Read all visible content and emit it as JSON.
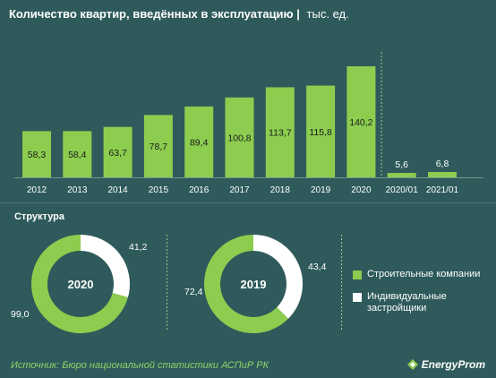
{
  "header": {
    "title": "Количество квартир, введённых в эксплуатацию",
    "separator": "|",
    "unit": "тыс. ед."
  },
  "chart_data": [
    {
      "type": "bar",
      "title": "Количество квартир, введённых в эксплуатацию",
      "unit": "тыс. ед.",
      "categories": [
        "2012",
        "2013",
        "2014",
        "2015",
        "2016",
        "2017",
        "2018",
        "2019",
        "2020",
        "2020/01",
        "2021/01"
      ],
      "values": [
        58.3,
        58.4,
        63.7,
        78.7,
        89.4,
        100.8,
        113.7,
        115.8,
        140.2,
        5.6,
        6.8
      ],
      "value_labels": [
        "58,3",
        "58,4",
        "63,7",
        "78,7",
        "89,4",
        "100,8",
        "113,7",
        "115,8",
        "140,2",
        "5,6",
        "6,8"
      ],
      "ylim": [
        0,
        140.2
      ],
      "grid": false,
      "color": "#8ccd4f"
    },
    {
      "type": "pie",
      "center_label": "2020",
      "series": [
        {
          "name": "Строительные компании",
          "value": 99.0,
          "label": "99,0"
        },
        {
          "name": "Индивидуальные застройщики",
          "value": 41.2,
          "label": "41,2"
        }
      ]
    },
    {
      "type": "pie",
      "center_label": "2019",
      "series": [
        {
          "name": "Строительные компании",
          "value": 72.4,
          "label": "72,4"
        },
        {
          "name": "Индивидуальные застройщики",
          "value": 43.4,
          "label": "43,4"
        }
      ]
    }
  ],
  "structure_label": "Структура",
  "legend": [
    {
      "label": "Строительные компании",
      "color": "#8ccd4f"
    },
    {
      "label": "Индивидуальные застройщики",
      "color": "#ffffff"
    }
  ],
  "footer": {
    "source": "Источник: Бюро национальной  статистики АСПиР РК",
    "brand": "EnergyProm"
  },
  "colors": {
    "background": "#2e5a5b",
    "bar": "#8ccd4f",
    "divider": "#6e9b8f",
    "secondary": "#ffffff"
  }
}
